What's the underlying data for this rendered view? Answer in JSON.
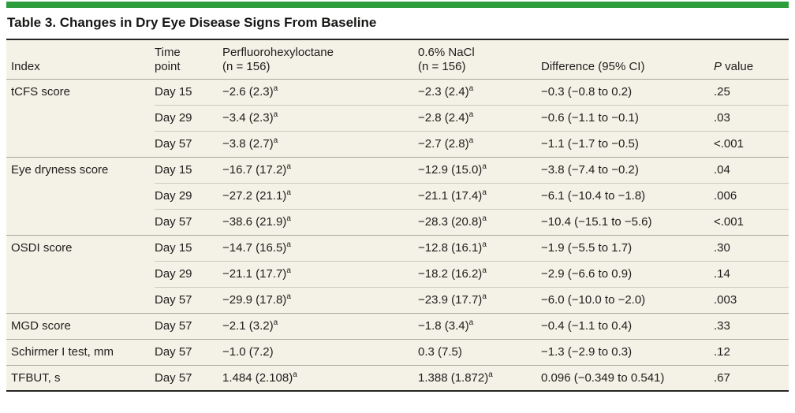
{
  "colors": {
    "accent": "#2d9c3c",
    "table_background": "#f4f1e6",
    "text": "#1e1e1c",
    "heavy_rule": "#262624",
    "group_line": "#a8a8a0",
    "row_line": "#cbcbc3"
  },
  "title": "Table 3. Changes in Dry Eye Disease Signs From Baseline",
  "header": {
    "index": "Index",
    "time": {
      "line1": "Time",
      "line2": "point"
    },
    "pfho": {
      "line1": "Perfluorohexyloctane",
      "line2": "(n = 156)"
    },
    "nacl": {
      "line1": "0.6% NaCl",
      "line2": "(n = 156)"
    },
    "diff": "Difference (95% CI)",
    "p": {
      "italic": "P",
      "rest": " value"
    }
  },
  "groups": [
    {
      "index": "tCFS score",
      "rows": [
        {
          "time": "Day 15",
          "pfho": "−2.6 (2.3)",
          "pfho_sup": "a",
          "nacl": "−2.3 (2.4)",
          "nacl_sup": "a",
          "diff": "−0.3 (−0.8 to 0.2)",
          "p": ".25"
        },
        {
          "time": "Day 29",
          "pfho": "−3.4 (2.3)",
          "pfho_sup": "a",
          "nacl": "−2.8 (2.4)",
          "nacl_sup": "a",
          "diff": "−0.6 (−1.1 to −0.1)",
          "p": ".03"
        },
        {
          "time": "Day 57",
          "pfho": "−3.8 (2.7)",
          "pfho_sup": "a",
          "nacl": "−2.7 (2.8)",
          "nacl_sup": "a",
          "diff": "−1.1 (−1.7 to −0.5)",
          "p": "<.001"
        }
      ]
    },
    {
      "index": "Eye dryness score",
      "rows": [
        {
          "time": "Day 15",
          "pfho": "−16.7 (17.2)",
          "pfho_sup": "a",
          "nacl": "−12.9 (15.0)",
          "nacl_sup": "a",
          "diff": "−3.8 (−7.4 to −0.2)",
          "p": ".04"
        },
        {
          "time": "Day 29",
          "pfho": "−27.2 (21.1)",
          "pfho_sup": "a",
          "nacl": "−21.1 (17.4)",
          "nacl_sup": "a",
          "diff": "−6.1 (−10.4 to −1.8)",
          "p": ".006"
        },
        {
          "time": "Day 57",
          "pfho": "−38.6 (21.9)",
          "pfho_sup": "a",
          "nacl": "−28.3 (20.8)",
          "nacl_sup": "a",
          "diff": "−10.4 (−15.1 to −5.6)",
          "p": "<.001"
        }
      ]
    },
    {
      "index": "OSDI score",
      "rows": [
        {
          "time": "Day 15",
          "pfho": "−14.7 (16.5)",
          "pfho_sup": "a",
          "nacl": "−12.8 (16.1)",
          "nacl_sup": "a",
          "diff": "−1.9 (−5.5 to 1.7)",
          "p": ".30"
        },
        {
          "time": "Day 29",
          "pfho": "−21.1 (17.7)",
          "pfho_sup": "a",
          "nacl": "−18.2 (16.2)",
          "nacl_sup": "a",
          "diff": "−2.9 (−6.6 to 0.9)",
          "p": ".14"
        },
        {
          "time": "Day 57",
          "pfho": "−29.9 (17.8)",
          "pfho_sup": "a",
          "nacl": "−23.9 (17.7)",
          "nacl_sup": "a",
          "diff": "−6.0 (−10.0 to −2.0)",
          "p": ".003"
        }
      ]
    },
    {
      "index": "MGD score",
      "rows": [
        {
          "time": "Day 57",
          "pfho": "−2.1 (3.2)",
          "pfho_sup": "a",
          "nacl": "−1.8 (3.4)",
          "nacl_sup": "a",
          "diff": "−0.4 (−1.1 to 0.4)",
          "p": ".33"
        }
      ]
    },
    {
      "index": "Schirmer I test, mm",
      "rows": [
        {
          "time": "Day 57",
          "pfho": "−1.0 (7.2)",
          "nacl": "0.3 (7.5)",
          "diff": "−1.3 (−2.9 to 0.3)",
          "p": ".12"
        }
      ]
    },
    {
      "index": "TFBUT, s",
      "rows": [
        {
          "time": "Day 57",
          "pfho": "1.484 (2.108)",
          "pfho_sup": "a",
          "nacl": "1.388 (1.872)",
          "nacl_sup": "a",
          "diff": "0.096 (−0.349 to 0.541)",
          "p": ".67"
        }
      ]
    }
  ]
}
